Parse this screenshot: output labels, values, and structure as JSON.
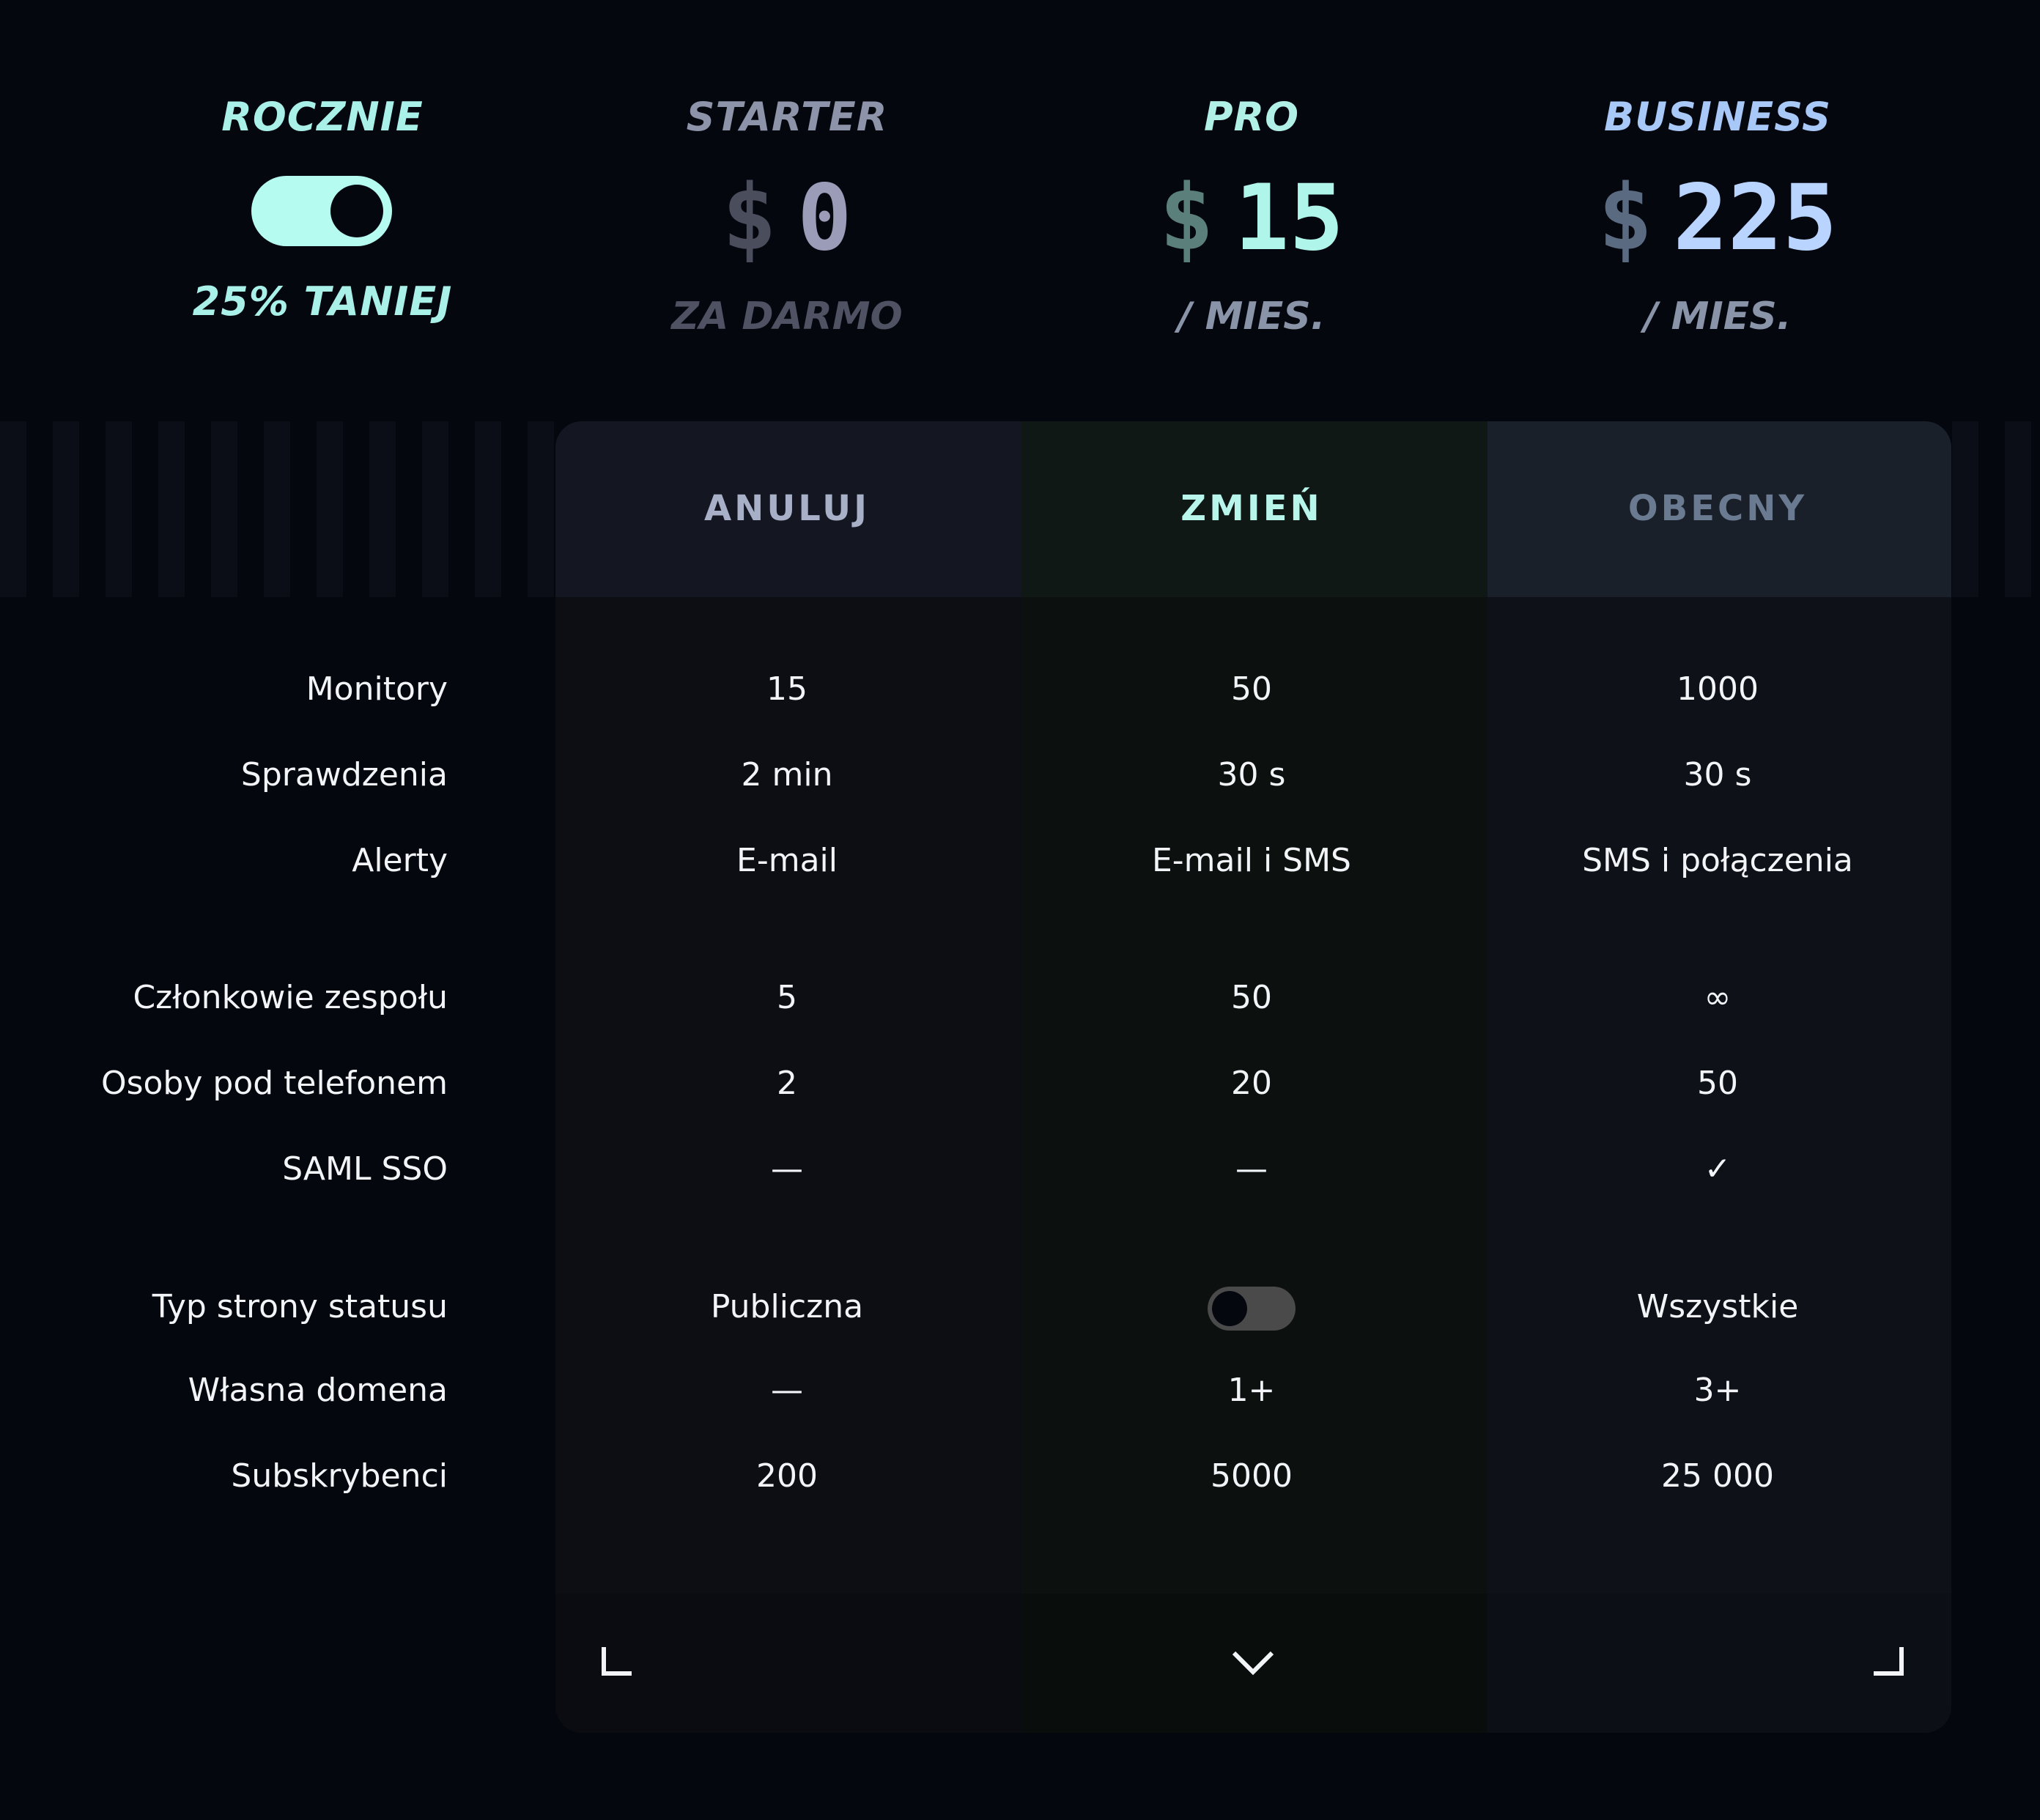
{
  "billing": {
    "label": "ROCZNIE",
    "discount": "25% TANIEJ"
  },
  "plans": [
    {
      "name": "STARTER",
      "currency": "$",
      "price": "0",
      "period": "ZA DARMO",
      "action": "ANULUJ"
    },
    {
      "name": "PRO",
      "currency": "$",
      "price": "15",
      "period": "/ MIES.",
      "action": "ZMIEŃ"
    },
    {
      "name": "BUSINESS",
      "currency": "$",
      "price": "225",
      "period": "/ MIES.",
      "action": "OBECNY"
    }
  ],
  "features": [
    {
      "label": "Monitory",
      "values": [
        "15",
        "50",
        "1000"
      ]
    },
    {
      "label": "Sprawdzenia",
      "values": [
        "2 min",
        "30 s",
        "30 s"
      ]
    },
    {
      "label": "Alerty",
      "values": [
        "E-mail",
        "E-mail i SMS",
        "SMS i połączenia"
      ]
    },
    {
      "label": "Członkowie zespołu",
      "values": [
        "5",
        "50",
        "∞"
      ]
    },
    {
      "label": "Osoby pod telefonem",
      "values": [
        "2",
        "20",
        "50"
      ]
    },
    {
      "label": "SAML SSO",
      "values": [
        "—",
        "—",
        "✓"
      ]
    },
    {
      "label": "Typ strony statusu",
      "values": [
        "Publiczna",
        null,
        "Wszystkie"
      ]
    },
    {
      "label": "Własna domena",
      "values": [
        "—",
        "1+",
        "3+"
      ]
    },
    {
      "label": "Subskrybenci",
      "values": [
        "200",
        "5000",
        "25 000"
      ]
    }
  ]
}
